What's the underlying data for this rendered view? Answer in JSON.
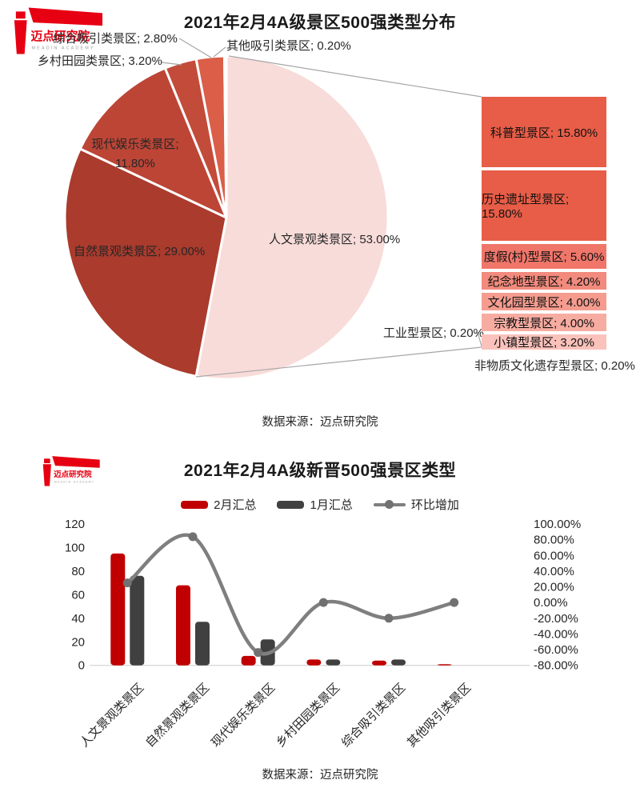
{
  "brand": {
    "logo_text": "迈点研究院",
    "logo_subtext": "MEADIN ACADEMY",
    "logo_color": "#E60012"
  },
  "source_note": "数据来源：迈点研究院",
  "chart_data": [
    {
      "type": "pie",
      "title": "2021年2月4A级景区500强类型分布",
      "legend_position": "none",
      "slices": [
        {
          "label": "人文景观类景区",
          "value": 53.0,
          "display": "人文景观类景区; 53.00%",
          "color": "#F8DCDA"
        },
        {
          "label": "自然景观类景区",
          "value": 29.0,
          "display": "自然景观类景区; 29.00%",
          "color": "#AA3B2D"
        },
        {
          "label": "现代娱乐类景区",
          "value": 11.8,
          "display": "现代娱乐类景区;\n11.80%",
          "color": "#BC4536"
        },
        {
          "label": "乡村田园类景区",
          "value": 3.2,
          "display": "乡村田园类景区; 3.20%",
          "color": "#C34B3A"
        },
        {
          "label": "综合吸引类景区",
          "value": 2.8,
          "display": "综合吸引类景区; 2.80%",
          "color": "#DB5E49"
        },
        {
          "label": "其他吸引类景区",
          "value": 0.2,
          "display": "其他吸引类景区; 0.20%",
          "color": "#E8695A"
        }
      ],
      "breakdown_of": "人文景观类景区",
      "breakdown": [
        {
          "label": "科普型景区",
          "value": 15.8,
          "display": "科普型景区; 15.80%",
          "color": "#E85D47"
        },
        {
          "label": "历史遗址型景区",
          "value": 15.8,
          "display": "历史遗址型景区; 15.80%",
          "color": "#E85D47"
        },
        {
          "label": "度假(村)型景区",
          "value": 5.6,
          "display": "度假(村)型景区; 5.60%",
          "color": "#F0766A"
        },
        {
          "label": "纪念地型景区",
          "value": 4.2,
          "display": "纪念地型景区; 4.20%",
          "color": "#F28B7D"
        },
        {
          "label": "文化园型景区",
          "value": 4.0,
          "display": "文化园型景区; 4.00%",
          "color": "#F59C8F"
        },
        {
          "label": "宗教型景区",
          "value": 4.0,
          "display": "宗教型景区; 4.00%",
          "color": "#F7ACA1"
        },
        {
          "label": "小镇型景区",
          "value": 3.2,
          "display": "小镇型景区; 3.20%",
          "color": "#FAC2BB"
        },
        {
          "label": "工业型景区",
          "value": 0.2,
          "display": "工业型景区; 0.20%",
          "color": null
        },
        {
          "label": "非物质文化遗存型景区",
          "value": 0.2,
          "display": "非物质文化遗存型景区; 0.20%",
          "color": null
        }
      ]
    },
    {
      "type": "bar+line",
      "title": "2021年2月4A级新晋500强景区类型",
      "categories": [
        "人文景观类景区",
        "自然景观类景区",
        "现代娱乐类景区",
        "乡村田园类景区",
        "综合吸引类景区",
        "其他吸引类景区"
      ],
      "series": [
        {
          "name": "2月汇总",
          "chart": "bar",
          "axis": "left",
          "color": "#C00000",
          "values": [
            95,
            68,
            8,
            5,
            4,
            1
          ]
        },
        {
          "name": "1月汇总",
          "chart": "bar",
          "axis": "left",
          "color": "#404040",
          "values": [
            76,
            37,
            22,
            5,
            5,
            0
          ]
        },
        {
          "name": "环比增加",
          "chart": "line",
          "axis": "right",
          "color": "#7F7F7F",
          "values_pct": [
            25.0,
            83.78,
            -63.64,
            0.0,
            -20.0,
            0.0
          ]
        }
      ],
      "left_axis": {
        "min": 0,
        "max": 120,
        "step": 20,
        "ticks_bottom_to_top": [
          "0",
          "20",
          "40",
          "60",
          "80",
          "100",
          "120"
        ]
      },
      "right_axis": {
        "min": -80,
        "max": 100,
        "step": 20,
        "ticks_top_to_bottom": [
          "100.00%",
          "80.00%",
          "60.00%",
          "40.00%",
          "20.00%",
          "0.00%",
          "-20.00%",
          "-40.00%",
          "-60.00%",
          "-80.00%"
        ]
      },
      "grid": "baseline-only",
      "legend_position": "top-center"
    }
  ]
}
